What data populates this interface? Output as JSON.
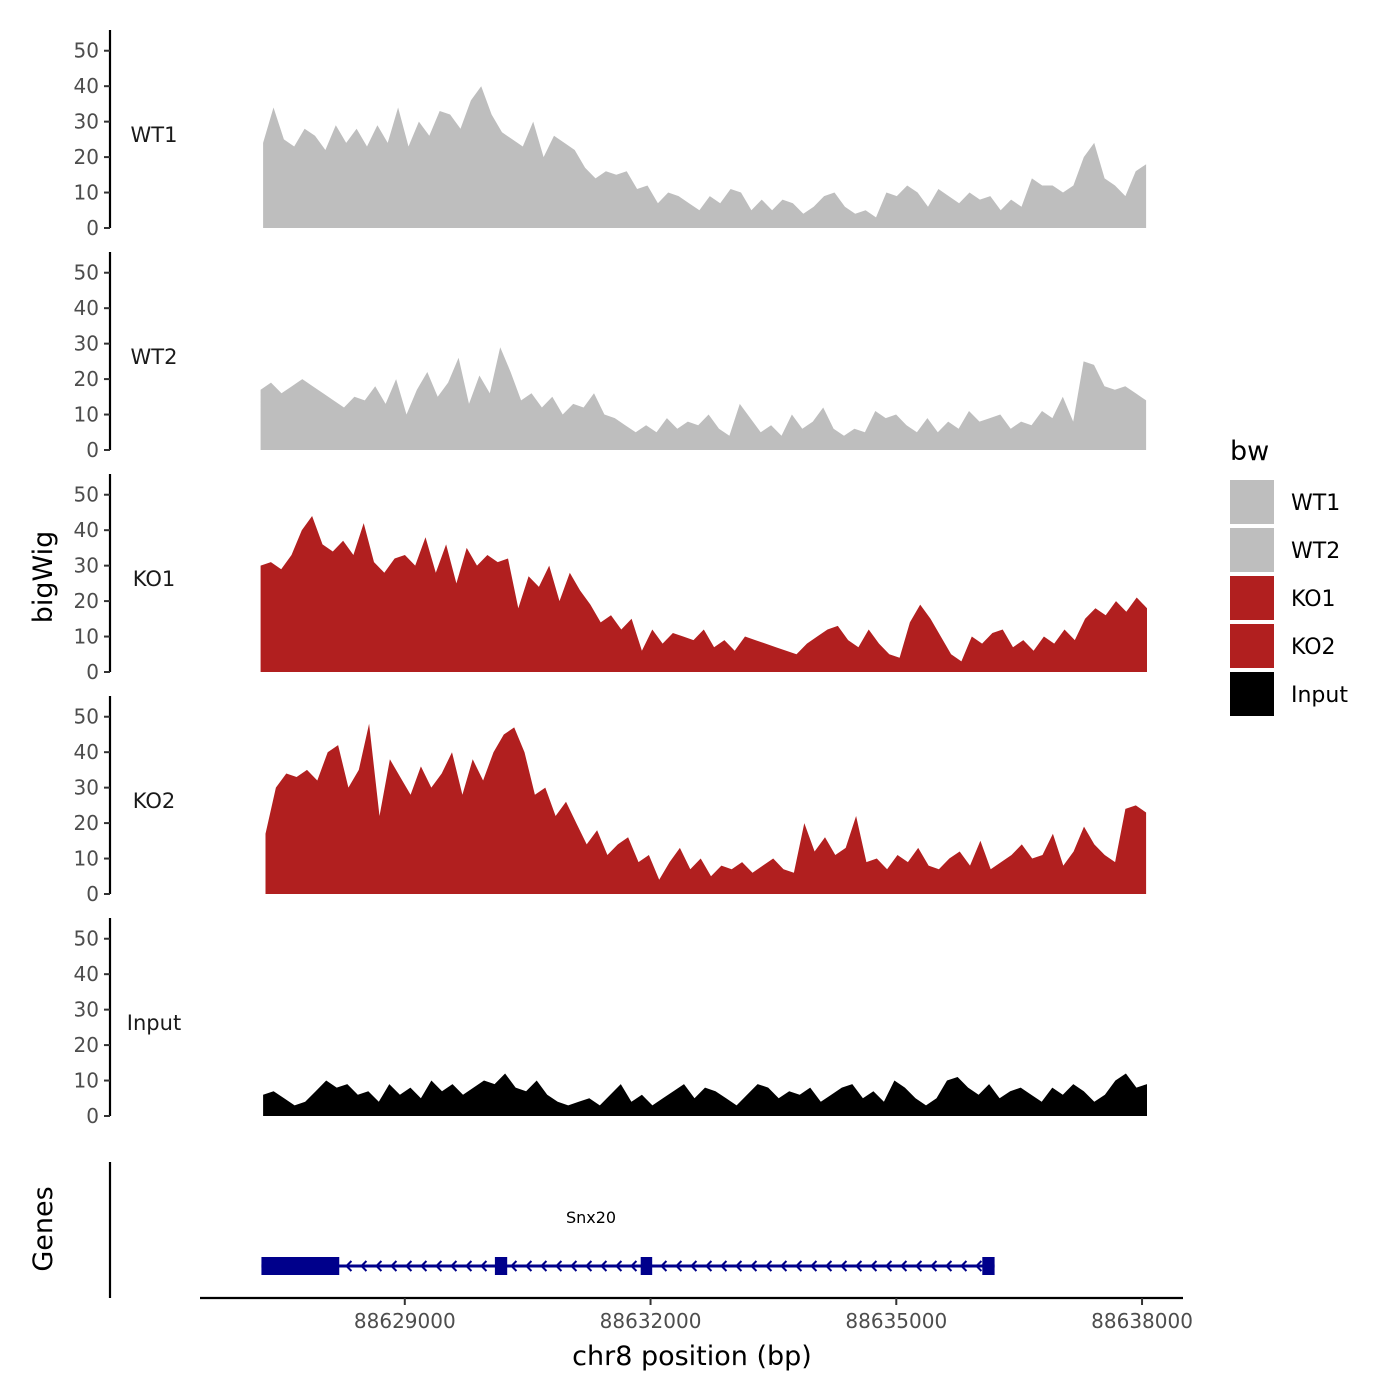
{
  "chart_data": {
    "type": "area",
    "ylabel": "bigWig",
    "xlabel": "chr8 position (bp)",
    "xlim": [
      88626500,
      88638500
    ],
    "x_ticks": [
      88629000,
      88632000,
      88635000,
      88638000
    ],
    "x_tick_labels": [
      "88629000",
      "88632000",
      "88635000",
      "88638000"
    ],
    "ylim": [
      0,
      55
    ],
    "y_ticks": [
      0,
      10,
      20,
      30,
      40,
      50
    ],
    "y_tick_labels": [
      "0",
      "10",
      "20",
      "30",
      "40",
      "50"
    ],
    "legend": {
      "title": "bw",
      "position": "right",
      "entries": [
        {
          "label": "WT1",
          "color": "#bebebe"
        },
        {
          "label": "WT2",
          "color": "#bebebe"
        },
        {
          "label": "KO1",
          "color": "#b11f1f"
        },
        {
          "label": "KO2",
          "color": "#b11f1f"
        },
        {
          "label": "Input",
          "color": "#000000"
        }
      ]
    },
    "tracks": [
      {
        "name": "WT1",
        "color": "#bebebe",
        "x_start": 88627270,
        "x_end": 88638050,
        "values": [
          24,
          34,
          25,
          23,
          28,
          26,
          22,
          29,
          24,
          28,
          23,
          29,
          24,
          34,
          23,
          30,
          26,
          33,
          32,
          28,
          36,
          40,
          32,
          27,
          25,
          23,
          30,
          20,
          26,
          24,
          22,
          17,
          14,
          16,
          15,
          16,
          11,
          12,
          7,
          10,
          9,
          7,
          5,
          9,
          7,
          11,
          10,
          5,
          8,
          5,
          8,
          7,
          4,
          6,
          9,
          10,
          6,
          4,
          5,
          3,
          10,
          9,
          12,
          10,
          6,
          11,
          9,
          7,
          10,
          8,
          9,
          5,
          8,
          6,
          14,
          12,
          12,
          10,
          12,
          20,
          24,
          14,
          12,
          9,
          16,
          18
        ]
      },
      {
        "name": "WT2",
        "color": "#bebebe",
        "x_start": 88627240,
        "x_end": 88638050,
        "values": [
          17,
          19,
          16,
          18,
          20,
          18,
          16,
          14,
          12,
          15,
          14,
          18,
          13,
          20,
          10,
          17,
          22,
          15,
          19,
          26,
          13,
          21,
          16,
          29,
          22,
          14,
          16,
          12,
          15,
          10,
          13,
          12,
          16,
          10,
          9,
          7,
          5,
          7,
          5,
          9,
          6,
          8,
          7,
          10,
          6,
          4,
          13,
          9,
          5,
          7,
          4,
          10,
          6,
          8,
          12,
          6,
          4,
          6,
          5,
          11,
          9,
          10,
          7,
          5,
          9,
          5,
          8,
          6,
          11,
          8,
          9,
          10,
          6,
          8,
          7,
          11,
          9,
          15,
          8,
          25,
          24,
          18,
          17,
          18,
          16,
          14
        ]
      },
      {
        "name": "KO1",
        "color": "#b11f1f",
        "x_start": 88627240,
        "x_end": 88638060,
        "values": [
          30,
          31,
          29,
          33,
          40,
          44,
          36,
          34,
          37,
          33,
          42,
          31,
          28,
          32,
          33,
          30,
          38,
          28,
          36,
          25,
          35,
          30,
          33,
          31,
          32,
          18,
          27,
          24,
          30,
          20,
          28,
          23,
          19,
          14,
          16,
          12,
          15,
          6,
          12,
          8,
          11,
          10,
          9,
          12,
          7,
          9,
          6,
          10,
          9,
          8,
          7,
          6,
          5,
          8,
          10,
          12,
          13,
          9,
          7,
          12,
          8,
          5,
          4,
          14,
          19,
          15,
          10,
          5,
          3,
          10,
          8,
          11,
          12,
          7,
          9,
          6,
          10,
          8,
          12,
          9,
          15,
          18,
          16,
          20,
          17,
          21,
          18
        ]
      },
      {
        "name": "KO2",
        "color": "#b11f1f",
        "x_start": 88627300,
        "x_end": 88638050,
        "values": [
          17,
          30,
          34,
          33,
          35,
          32,
          40,
          42,
          30,
          35,
          48,
          22,
          38,
          33,
          28,
          36,
          30,
          34,
          40,
          28,
          38,
          32,
          40,
          45,
          47,
          40,
          28,
          30,
          22,
          26,
          20,
          14,
          18,
          11,
          14,
          16,
          9,
          11,
          4,
          9,
          13,
          7,
          10,
          5,
          8,
          7,
          9,
          6,
          8,
          10,
          7,
          6,
          20,
          12,
          16,
          11,
          13,
          22,
          9,
          10,
          7,
          11,
          9,
          13,
          8,
          7,
          10,
          12,
          8,
          15,
          7,
          9,
          11,
          14,
          10,
          11,
          17,
          8,
          12,
          19,
          14,
          11,
          9,
          24,
          25,
          23
        ]
      },
      {
        "name": "Input",
        "color": "#000000",
        "x_start": 88627270,
        "x_end": 88638060,
        "values": [
          6,
          7,
          5,
          3,
          4,
          7,
          10,
          8,
          9,
          6,
          7,
          4,
          9,
          6,
          8,
          5,
          10,
          7,
          9,
          6,
          8,
          10,
          9,
          12,
          8,
          7,
          10,
          6,
          4,
          3,
          4,
          5,
          3,
          6,
          9,
          4,
          6,
          3,
          5,
          7,
          9,
          5,
          8,
          7,
          5,
          3,
          6,
          9,
          8,
          5,
          7,
          6,
          8,
          4,
          6,
          8,
          9,
          5,
          7,
          4,
          10,
          8,
          5,
          3,
          5,
          10,
          11,
          8,
          6,
          9,
          5,
          7,
          8,
          6,
          4,
          8,
          6,
          9,
          7,
          4,
          6,
          10,
          12,
          8,
          9
        ]
      }
    ],
    "genes_track": {
      "label": "Genes",
      "color": "#00008b",
      "genes": [
        {
          "name": "Snx20",
          "start": 88627250,
          "end": 88636200,
          "strand": "-",
          "exons": [
            [
              88627250,
              88628200
            ],
            [
              88630100,
              88630250
            ],
            [
              88631880,
              88632020
            ],
            [
              88636050,
              88636200
            ]
          ]
        }
      ]
    }
  }
}
